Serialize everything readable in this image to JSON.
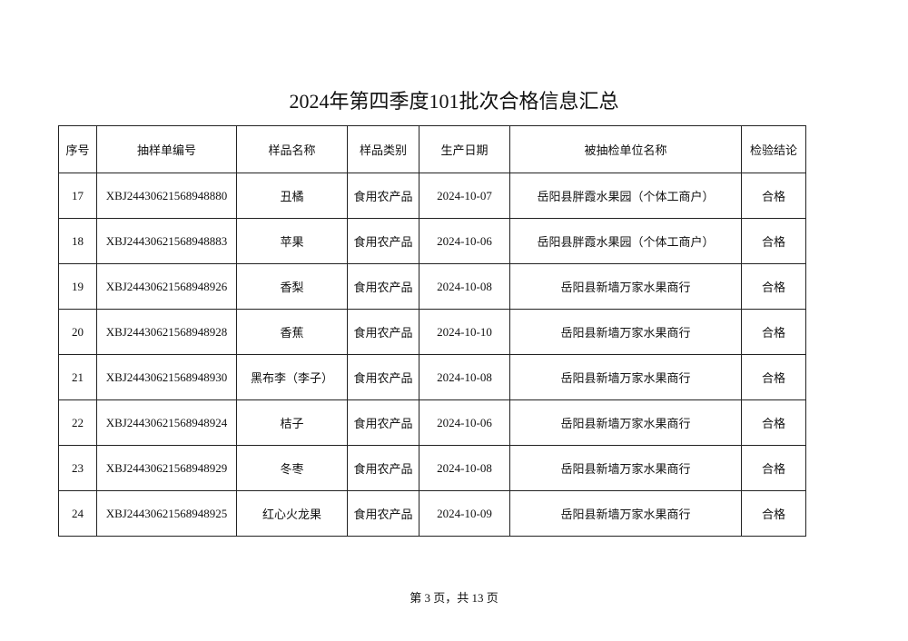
{
  "title": "2024年第四季度101批次合格信息汇总",
  "columns": [
    "序号",
    "抽样单编号",
    "样品名称",
    "样品类别",
    "生产日期",
    "被抽检单位名称",
    "检验结论"
  ],
  "rows": [
    [
      "17",
      "XBJ24430621568948880",
      "丑橘",
      "食用农产品",
      "2024-10-07",
      "岳阳县胖霞水果园（个体工商户）",
      "合格"
    ],
    [
      "18",
      "XBJ24430621568948883",
      "苹果",
      "食用农产品",
      "2024-10-06",
      "岳阳县胖霞水果园（个体工商户）",
      "合格"
    ],
    [
      "19",
      "XBJ24430621568948926",
      "香梨",
      "食用农产品",
      "2024-10-08",
      "岳阳县新墙万家水果商行",
      "合格"
    ],
    [
      "20",
      "XBJ24430621568948928",
      "香蕉",
      "食用农产品",
      "2024-10-10",
      "岳阳县新墙万家水果商行",
      "合格"
    ],
    [
      "21",
      "XBJ24430621568948930",
      "黑布李（李子）",
      "食用农产品",
      "2024-10-08",
      "岳阳县新墙万家水果商行",
      "合格"
    ],
    [
      "22",
      "XBJ24430621568948924",
      "桔子",
      "食用农产品",
      "2024-10-06",
      "岳阳县新墙万家水果商行",
      "合格"
    ],
    [
      "23",
      "XBJ24430621568948929",
      "冬枣",
      "食用农产品",
      "2024-10-08",
      "岳阳县新墙万家水果商行",
      "合格"
    ],
    [
      "24",
      "XBJ24430621568948925",
      "红心火龙果",
      "食用农产品",
      "2024-10-09",
      "岳阳县新墙万家水果商行",
      "合格"
    ]
  ],
  "footer": "第 3 页，共 13 页"
}
